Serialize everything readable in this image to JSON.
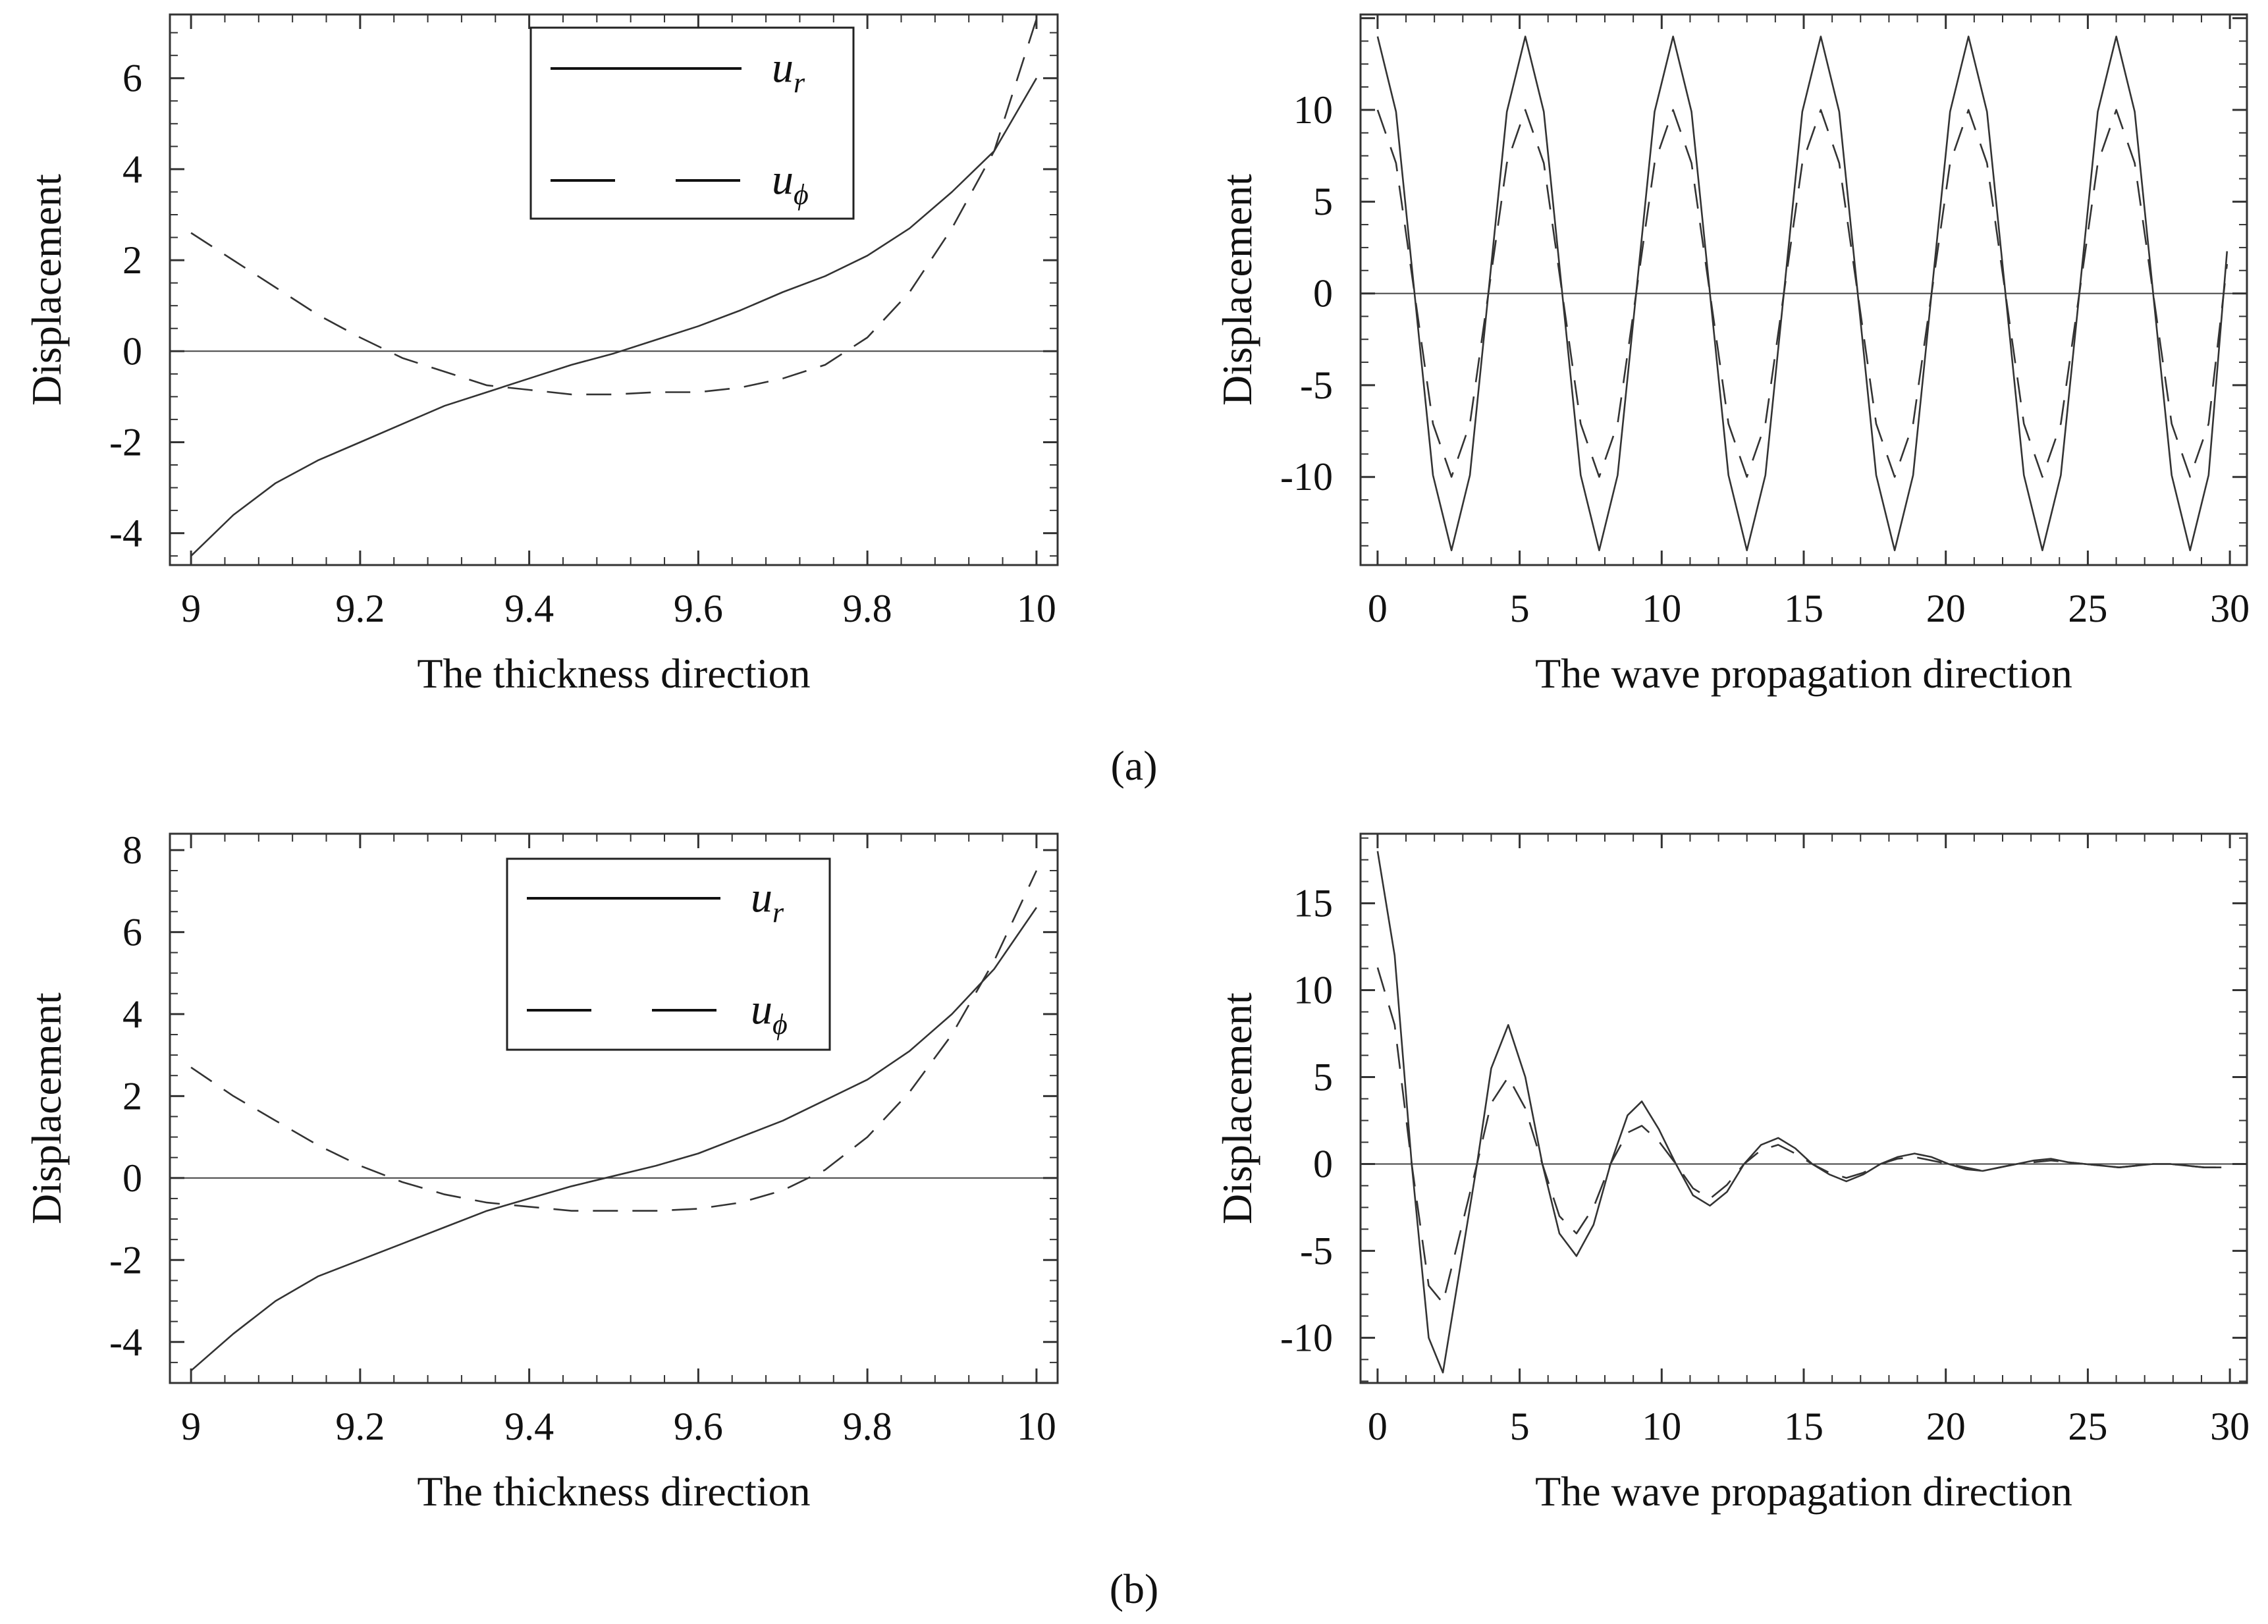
{
  "panel_labels": {
    "a": "(a)",
    "b": "(b)"
  },
  "legend": {
    "solid": {
      "main": "u",
      "sub": "r"
    },
    "dashed": {
      "main": "u",
      "sub": "ϕ"
    }
  },
  "chart_data": [
    {
      "id": "a-left",
      "type": "line",
      "xlabel": "The thickness direction",
      "ylabel": "Displacement",
      "xlim": [
        8.975,
        10.025
      ],
      "ylim": [
        -4.7,
        7.4
      ],
      "xticks": [
        9,
        9.2,
        9.4,
        9.6,
        9.8,
        10
      ],
      "xticklabels": [
        "9",
        "9.2",
        "9.4",
        "9.6",
        "9.8",
        "10"
      ],
      "yticks": [
        -4,
        -2,
        0,
        2,
        4,
        6
      ],
      "yticklabels": [
        "-4",
        "-2",
        "0",
        "2",
        "4",
        "6"
      ],
      "legend": true,
      "legend_position": "top-center",
      "series": [
        {
          "name": "u_r",
          "style": "solid",
          "x": [
            9.0,
            9.05,
            9.1,
            9.15,
            9.2,
            9.25,
            9.3,
            9.35,
            9.4,
            9.45,
            9.5,
            9.55,
            9.6,
            9.65,
            9.7,
            9.75,
            9.8,
            9.85,
            9.9,
            9.95,
            10.0
          ],
          "y": [
            -4.5,
            -3.6,
            -2.9,
            -2.4,
            -2.0,
            -1.6,
            -1.2,
            -0.9,
            -0.6,
            -0.3,
            -0.05,
            0.25,
            0.55,
            0.9,
            1.3,
            1.65,
            2.1,
            2.7,
            3.5,
            4.4,
            6.0
          ]
        },
        {
          "name": "u_phi",
          "style": "dashed",
          "x": [
            9.0,
            9.05,
            9.1,
            9.15,
            9.2,
            9.25,
            9.3,
            9.35,
            9.4,
            9.45,
            9.5,
            9.55,
            9.6,
            9.65,
            9.7,
            9.75,
            9.8,
            9.85,
            9.9,
            9.95,
            10.0
          ],
          "y": [
            2.6,
            2.0,
            1.4,
            0.8,
            0.3,
            -0.15,
            -0.45,
            -0.75,
            -0.85,
            -0.95,
            -0.95,
            -0.9,
            -0.9,
            -0.8,
            -0.6,
            -0.3,
            0.3,
            1.3,
            2.7,
            4.4,
            7.3
          ]
        }
      ]
    },
    {
      "id": "a-right",
      "type": "line",
      "xlabel": "The wave propagation direction",
      "ylabel": "Displacement",
      "xlim": [
        -0.6,
        30.6
      ],
      "ylim": [
        -14.8,
        15.2
      ],
      "xticks": [
        0,
        5,
        10,
        15,
        20,
        25,
        30
      ],
      "xticklabels": [
        "0",
        "5",
        "10",
        "15",
        "20",
        "25",
        "30"
      ],
      "yticks": [
        -10,
        -5,
        0,
        5,
        10
      ],
      "yticklabels": [
        "-10",
        "-5",
        "0",
        "5",
        "10"
      ],
      "legend": false,
      "series": [
        {
          "name": "u_r",
          "style": "solid",
          "x": [
            0.0,
            0.65,
            1.3,
            1.95,
            2.6,
            3.25,
            3.9,
            4.55,
            5.2,
            5.85,
            6.5,
            7.15,
            7.8,
            8.45,
            9.1,
            9.75,
            10.4,
            11.05,
            11.7,
            12.35,
            13.0,
            13.65,
            14.3,
            14.95,
            15.6,
            16.25,
            16.9,
            17.55,
            18.2,
            18.85,
            19.5,
            20.15,
            20.8,
            21.45,
            22.1,
            22.75,
            23.4,
            24.05,
            24.7,
            25.35,
            26.0,
            26.65,
            27.3,
            27.95,
            28.6,
            29.25,
            29.9
          ],
          "y": [
            14.0,
            9.9,
            0.0,
            -9.9,
            -14.0,
            -9.9,
            0.0,
            9.9,
            14.0,
            9.9,
            0.0,
            -9.9,
            -14.0,
            -9.9,
            0.0,
            9.9,
            14.0,
            9.9,
            0.0,
            -9.9,
            -14.0,
            -9.9,
            0.0,
            9.9,
            14.0,
            9.9,
            0.0,
            -9.9,
            -14.0,
            -9.9,
            0.0,
            9.9,
            14.0,
            9.9,
            0.0,
            -9.9,
            -14.0,
            -9.9,
            0.0,
            9.9,
            14.0,
            9.9,
            0.0,
            -9.9,
            -14.0,
            -9.9,
            2.3
          ]
        },
        {
          "name": "u_phi",
          "style": "dashed",
          "x": [
            0.0,
            0.65,
            1.3,
            1.95,
            2.6,
            3.25,
            3.9,
            4.55,
            5.2,
            5.85,
            6.5,
            7.15,
            7.8,
            8.45,
            9.1,
            9.75,
            10.4,
            11.05,
            11.7,
            12.35,
            13.0,
            13.65,
            14.3,
            14.95,
            15.6,
            16.25,
            16.9,
            17.55,
            18.2,
            18.85,
            19.5,
            20.15,
            20.8,
            21.45,
            22.1,
            22.75,
            23.4,
            24.05,
            24.7,
            25.35,
            26.0,
            26.65,
            27.3,
            27.95,
            28.6,
            29.25,
            29.9
          ],
          "y": [
            10.0,
            7.1,
            0.0,
            -7.1,
            -10.0,
            -7.1,
            0.0,
            7.1,
            10.0,
            7.1,
            0.0,
            -7.1,
            -10.0,
            -7.1,
            0.0,
            7.1,
            10.0,
            7.1,
            0.0,
            -7.1,
            -10.0,
            -7.1,
            0.0,
            7.1,
            10.0,
            7.1,
            0.0,
            -7.1,
            -10.0,
            -7.1,
            0.0,
            7.1,
            10.0,
            7.1,
            0.0,
            -7.1,
            -10.0,
            -7.1,
            0.0,
            7.1,
            10.0,
            7.1,
            0.0,
            -7.1,
            -10.0,
            -7.1,
            1.6
          ]
        }
      ]
    },
    {
      "id": "b-left",
      "type": "line",
      "xlabel": "The thickness direction",
      "ylabel": "Displacement",
      "xlim": [
        8.975,
        10.025
      ],
      "ylim": [
        -5.0,
        8.4
      ],
      "xticks": [
        9,
        9.2,
        9.4,
        9.6,
        9.8,
        10
      ],
      "xticklabels": [
        "9",
        "9.2",
        "9.4",
        "9.6",
        "9.8",
        "10"
      ],
      "yticks": [
        -4,
        -2,
        0,
        2,
        4,
        6,
        8
      ],
      "yticklabels": [
        "-4",
        "-2",
        "0",
        "2",
        "4",
        "6",
        "8"
      ],
      "legend": true,
      "legend_position": "top-center",
      "series": [
        {
          "name": "u_r",
          "style": "solid",
          "x": [
            9.0,
            9.05,
            9.1,
            9.15,
            9.2,
            9.25,
            9.3,
            9.35,
            9.4,
            9.45,
            9.5,
            9.55,
            9.6,
            9.65,
            9.7,
            9.75,
            9.8,
            9.85,
            9.9,
            9.95,
            10.0
          ],
          "y": [
            -4.7,
            -3.8,
            -3.0,
            -2.4,
            -2.0,
            -1.6,
            -1.2,
            -0.8,
            -0.5,
            -0.2,
            0.05,
            0.3,
            0.6,
            1.0,
            1.4,
            1.9,
            2.4,
            3.1,
            4.0,
            5.1,
            6.6
          ]
        },
        {
          "name": "u_phi",
          "style": "dashed",
          "x": [
            9.0,
            9.05,
            9.1,
            9.15,
            9.2,
            9.25,
            9.3,
            9.35,
            9.4,
            9.45,
            9.5,
            9.55,
            9.6,
            9.65,
            9.7,
            9.75,
            9.8,
            9.85,
            9.9,
            9.95,
            10.0
          ],
          "y": [
            2.7,
            2.0,
            1.4,
            0.8,
            0.3,
            -0.1,
            -0.4,
            -0.6,
            -0.7,
            -0.8,
            -0.8,
            -0.8,
            -0.75,
            -0.6,
            -0.3,
            0.2,
            1.0,
            2.1,
            3.5,
            5.3,
            7.5
          ]
        }
      ]
    },
    {
      "id": "b-right",
      "type": "line",
      "xlabel": "The wave propagation direction",
      "ylabel": "Displacement",
      "xlim": [
        -0.6,
        30.6
      ],
      "ylim": [
        -12.6,
        19.0
      ],
      "xticks": [
        0,
        5,
        10,
        15,
        20,
        25,
        30
      ],
      "xticklabels": [
        "0",
        "5",
        "10",
        "15",
        "20",
        "25",
        "30"
      ],
      "yticks": [
        -10,
        -5,
        0,
        5,
        10,
        15
      ],
      "yticklabels": [
        "-10",
        "-5",
        "0",
        "5",
        "10",
        "15"
      ],
      "legend": false,
      "series": [
        {
          "name": "u_r",
          "style": "solid",
          "x": [
            0.0,
            0.6,
            1.2,
            1.8,
            2.3,
            2.9,
            3.5,
            4.0,
            4.6,
            5.2,
            5.8,
            6.4,
            7.0,
            7.6,
            8.2,
            8.8,
            9.3,
            9.9,
            10.5,
            11.1,
            11.7,
            12.3,
            12.9,
            13.5,
            14.1,
            14.7,
            15.3,
            15.9,
            16.5,
            17.1,
            17.7,
            18.3,
            18.9,
            19.5,
            20.1,
            20.7,
            21.3,
            21.9,
            22.5,
            23.1,
            23.7,
            24.3,
            24.9,
            25.5,
            26.1,
            26.7,
            27.3,
            27.9,
            28.5,
            29.1,
            29.7
          ],
          "y": [
            18.0,
            12.0,
            0.0,
            -10.0,
            -12.0,
            -6.0,
            0.0,
            5.5,
            8.0,
            5.0,
            0.0,
            -4.0,
            -5.3,
            -3.5,
            0.0,
            2.8,
            3.6,
            2.0,
            0.0,
            -1.8,
            -2.4,
            -1.6,
            0.0,
            1.1,
            1.5,
            0.9,
            0.0,
            -0.6,
            -1.0,
            -0.6,
            0.0,
            0.4,
            0.6,
            0.4,
            0.0,
            -0.3,
            -0.4,
            -0.2,
            0.0,
            0.2,
            0.3,
            0.1,
            0.0,
            -0.1,
            -0.2,
            -0.1,
            0.0,
            0.0,
            -0.1,
            -0.2,
            -0.2
          ]
        },
        {
          "name": "u_phi",
          "style": "dashed",
          "x": [
            0.0,
            0.6,
            1.2,
            1.8,
            2.3,
            2.9,
            3.5,
            4.0,
            4.6,
            5.2,
            5.8,
            6.4,
            7.0,
            7.6,
            8.2,
            8.8,
            9.3,
            9.9,
            10.5,
            11.1,
            11.7,
            12.3,
            12.9,
            13.5,
            14.1,
            14.7,
            15.3,
            15.9,
            16.5,
            17.1,
            17.7,
            18.3,
            18.9,
            19.5,
            20.1,
            20.7,
            21.3,
            21.9,
            22.5,
            23.1,
            23.7,
            24.3,
            24.9,
            25.5,
            26.1,
            26.7,
            27.3,
            27.9,
            28.5,
            29.1,
            29.7
          ],
          "y": [
            11.3,
            8.0,
            0.0,
            -7.0,
            -8.0,
            -4.0,
            0.0,
            3.5,
            5.0,
            3.2,
            0.0,
            -3.0,
            -4.0,
            -2.5,
            0.0,
            1.8,
            2.2,
            1.3,
            0.0,
            -1.4,
            -2.0,
            -1.2,
            0.0,
            0.8,
            1.1,
            0.6,
            0.0,
            -0.5,
            -0.8,
            -0.5,
            0.0,
            0.3,
            0.4,
            0.2,
            0.0,
            -0.2,
            -0.4,
            -0.2,
            0.0,
            0.1,
            0.2,
            0.1,
            0.0,
            -0.1,
            -0.2,
            -0.1,
            0.0,
            0.0,
            -0.1,
            -0.2,
            -0.2
          ]
        }
      ]
    }
  ]
}
